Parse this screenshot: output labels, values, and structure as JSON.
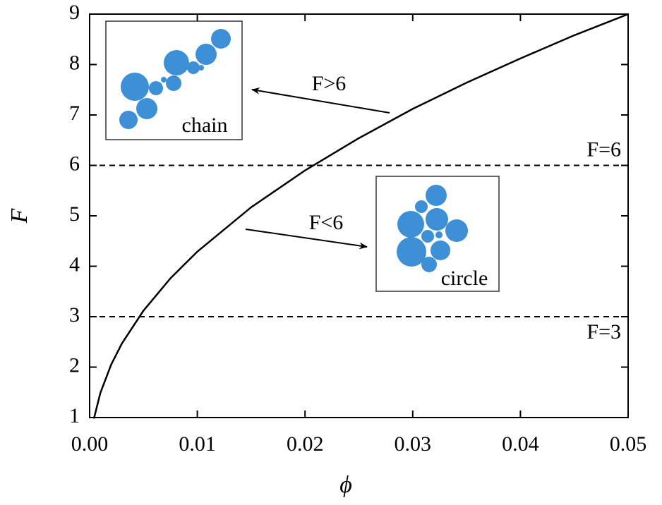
{
  "chart_data": {
    "type": "line",
    "xlabel": "ϕ",
    "ylabel": "F",
    "x": [
      0.0004,
      0.001,
      0.002,
      0.003,
      0.005,
      0.0075,
      0.01,
      0.015,
      0.02,
      0.025,
      0.03,
      0.035,
      0.04,
      0.045,
      0.05
    ],
    "series": [
      {
        "color": "#000000",
        "values": [
          0.98,
          1.49,
          2.05,
          2.47,
          3.12,
          3.76,
          4.29,
          5.17,
          5.9,
          6.54,
          7.12,
          7.64,
          8.12,
          8.58,
          9
        ]
      }
    ],
    "xlim": [
      0,
      0.05
    ],
    "xticks": [
      {
        "value": 0,
        "label": "0.00"
      },
      {
        "value": 0.01,
        "label": "0.01"
      },
      {
        "value": 0.02,
        "label": "0.02"
      },
      {
        "value": 0.03,
        "label": "0.03"
      },
      {
        "value": 0.04,
        "label": "0.04"
      },
      {
        "value": 0.05,
        "label": "0.05"
      }
    ],
    "ylim": [
      1,
      9
    ],
    "yticks": [
      1,
      2,
      3,
      4,
      5,
      6,
      7,
      8,
      9
    ],
    "hlines": [
      {
        "value": 6,
        "label": "F=6"
      },
      {
        "value": 3,
        "label": "F=3"
      }
    ],
    "annotations": {
      "upper": "F>6",
      "lower": "F<6",
      "chain": "chain",
      "circle": "circle"
    },
    "inset_color": "#3d8fd6"
  }
}
